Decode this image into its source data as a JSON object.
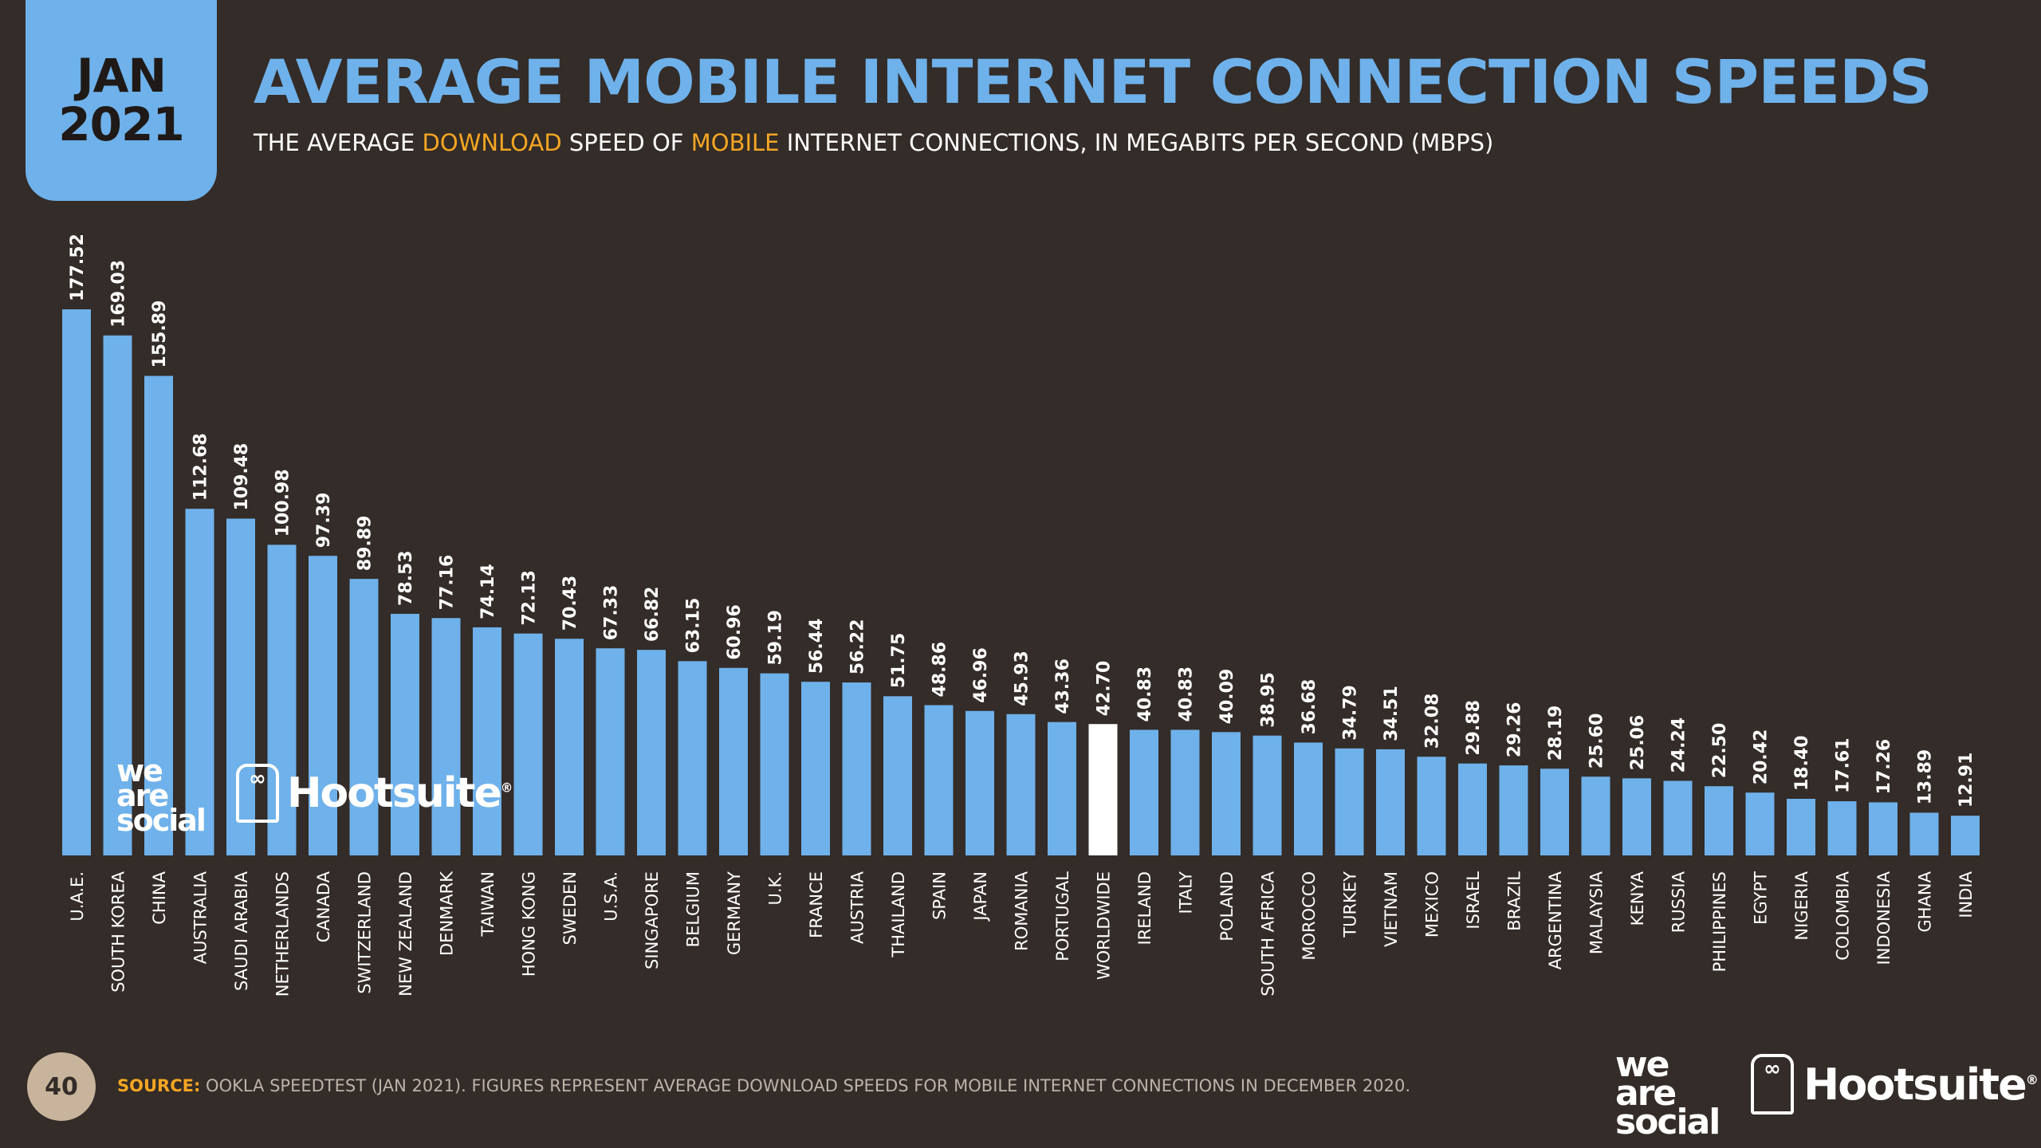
{
  "badge": {
    "month": "JAN",
    "year": "2021"
  },
  "title": "AVERAGE MOBILE INTERNET CONNECTION SPEEDS",
  "subtitle": {
    "part1": "THE AVERAGE ",
    "highlight1": "DOWNLOAD",
    "part2": " SPEED OF ",
    "highlight2": "MOBILE",
    "part3": " INTERNET CONNECTIONS, IN MEGABITS PER SECOND (MBPS)"
  },
  "colors": {
    "bar": "#6fb1ea",
    "highlight_bar": "#ffffff",
    "background": "#332c28",
    "accent": "#f5a623"
  },
  "chart_data": {
    "type": "bar",
    "title": "AVERAGE MOBILE INTERNET CONNECTION SPEEDS",
    "categories": [
      "U.A.E.",
      "SOUTH KOREA",
      "CHINA",
      "AUSTRALIA",
      "SAUDI ARABIA",
      "NETHERLANDS",
      "CANADA",
      "SWITZERLAND",
      "NEW ZEALAND",
      "DENMARK",
      "TAIWAN",
      "HONG KONG",
      "SWEDEN",
      "U.S.A.",
      "SINGAPORE",
      "BELGIUM",
      "GERMANY",
      "U.K.",
      "FRANCE",
      "AUSTRIA",
      "THAILAND",
      "SPAIN",
      "JAPAN",
      "ROMANIA",
      "PORTUGAL",
      "WORLDWIDE",
      "IRELAND",
      "ITALY",
      "POLAND",
      "SOUTH AFRICA",
      "MOROCCO",
      "TURKEY",
      "VIETNAM",
      "MEXICO",
      "ISRAEL",
      "BRAZIL",
      "ARGENTINA",
      "MALAYSIA",
      "KENYA",
      "RUSSIA",
      "PHILIPPINES",
      "EGYPT",
      "NIGERIA",
      "COLOMBIA",
      "INDONESIA",
      "GHANA",
      "INDIA"
    ],
    "values": [
      177.52,
      169.03,
      155.89,
      112.68,
      109.48,
      100.98,
      97.39,
      89.89,
      78.53,
      77.16,
      74.14,
      72.13,
      70.43,
      67.33,
      66.82,
      63.15,
      60.96,
      59.19,
      56.44,
      56.22,
      51.75,
      48.86,
      46.96,
      45.93,
      43.36,
      42.7,
      40.83,
      40.83,
      40.09,
      38.95,
      36.68,
      34.79,
      34.51,
      32.08,
      29.88,
      29.26,
      28.19,
      25.6,
      25.06,
      24.24,
      22.5,
      20.42,
      18.4,
      17.61,
      17.26,
      13.89,
      12.91
    ],
    "labels": [
      "177.52",
      "169.03",
      "155.89",
      "112.68",
      "109.48",
      "100.98",
      "97.39",
      "89.89",
      "78.53",
      "77.16",
      "74.14",
      "72.13",
      "70.43",
      "67.33",
      "66.82",
      "63.15",
      "60.96",
      "59.19",
      "56.44",
      "56.22",
      "51.75",
      "48.86",
      "46.96",
      "45.93",
      "43.36",
      "42.70",
      "40.83",
      "40.83",
      "40.09",
      "38.95",
      "36.68",
      "34.79",
      "34.51",
      "32.08",
      "29.88",
      "29.26",
      "28.19",
      "25.60",
      "25.06",
      "24.24",
      "22.50",
      "20.42",
      "18.40",
      "17.61",
      "17.26",
      "13.89",
      "12.91"
    ],
    "highlight": "WORLDWIDE",
    "ylim": [
      0,
      177.52
    ],
    "grid": false,
    "legend": "none"
  },
  "logos": {
    "we_are_social": [
      "we",
      "are",
      "social"
    ],
    "hootsuite": "Hootsuite",
    "registered": "®"
  },
  "footer": {
    "page_number": "40",
    "source_label": "SOURCE:",
    "source_text": " OOKLA SPEEDTEST (JAN 2021). FIGURES REPRESENT AVERAGE DOWNLOAD SPEEDS FOR MOBILE INTERNET CONNECTIONS IN DECEMBER 2020."
  }
}
